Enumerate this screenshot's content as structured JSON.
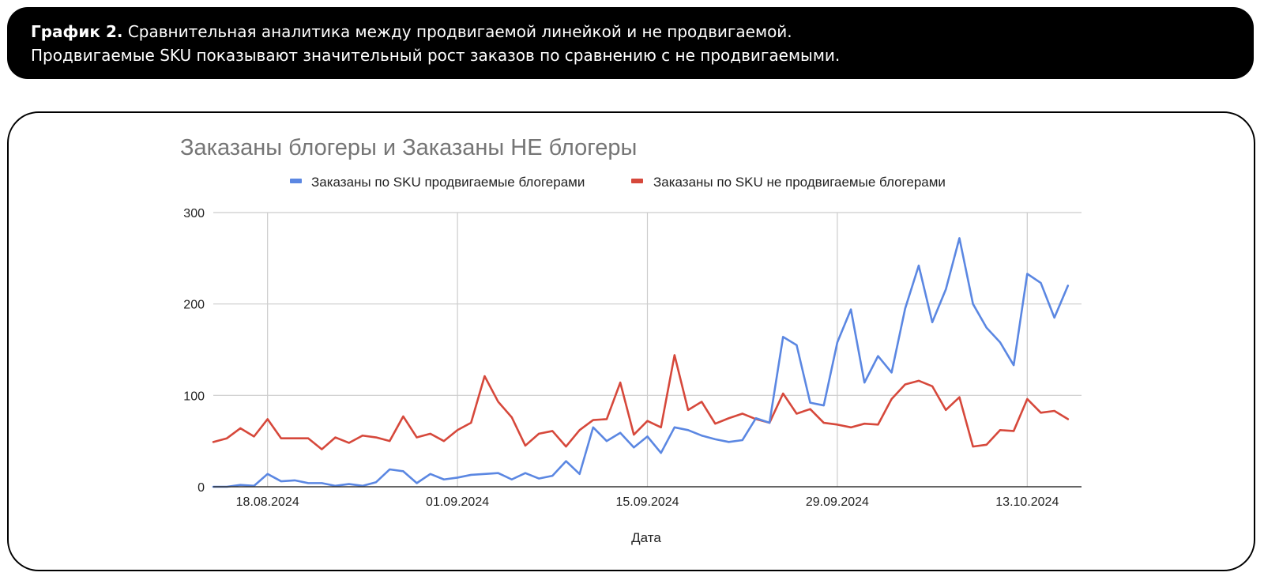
{
  "caption": {
    "bold_label": "График 2.",
    "line1_rest": " Сравнительная аналитика между продвигаемой линейкой и не продвигаемой.",
    "line2": "Продвигаемые SKU показывают значительный рост заказов по сравнению с не продвигаемыми."
  },
  "colors": {
    "series_promoted": "#5b87e2",
    "series_not_promoted": "#d6483b",
    "grid": "#cccccc",
    "axis": "#333333",
    "title": "#757575"
  },
  "chart_data": {
    "type": "line",
    "title": "Заказаны блогеры и Заказаны НЕ блогеры",
    "xlabel": "Дата",
    "ylabel": "",
    "ylim": [
      0,
      300
    ],
    "y_ticks": [
      0,
      100,
      200,
      300
    ],
    "x_ticks": [
      "18.08.2024",
      "01.09.2024",
      "15.09.2024",
      "29.09.2024",
      "13.10.2024"
    ],
    "x_start": "14.08.2024",
    "x_end": "17.10.2024",
    "legend_position": "top",
    "grid": true,
    "series": [
      {
        "name": "Заказаны по SKU продвигаемые блогерами",
        "color": "#5b87e2",
        "values": [
          0,
          0,
          2,
          1,
          14,
          6,
          7,
          4,
          4,
          1,
          3,
          1,
          5,
          19,
          17,
          4,
          14,
          8,
          10,
          13,
          14,
          15,
          8,
          15,
          9,
          12,
          28,
          14,
          65,
          50,
          59,
          43,
          55,
          37,
          65,
          62,
          56,
          52,
          49,
          51,
          75,
          70,
          164,
          155,
          92,
          89,
          158,
          194,
          114,
          143,
          125,
          195,
          242,
          180,
          216,
          272,
          200,
          174,
          158,
          133,
          233,
          223,
          185,
          220
        ]
      },
      {
        "name": "Заказаны по SKU не продвигаемые блогерами",
        "color": "#d6483b",
        "values": [
          49,
          53,
          64,
          55,
          74,
          53,
          53,
          53,
          41,
          54,
          48,
          56,
          54,
          50,
          77,
          54,
          58,
          50,
          62,
          70,
          121,
          93,
          76,
          45,
          58,
          61,
          44,
          62,
          73,
          74,
          114,
          57,
          72,
          65,
          144,
          84,
          93,
          69,
          75,
          80,
          74,
          70,
          102,
          80,
          85,
          70,
          68,
          65,
          69,
          68,
          96,
          112,
          116,
          110,
          84,
          98,
          44,
          46,
          62,
          61,
          96,
          81,
          83,
          74
        ]
      }
    ]
  }
}
